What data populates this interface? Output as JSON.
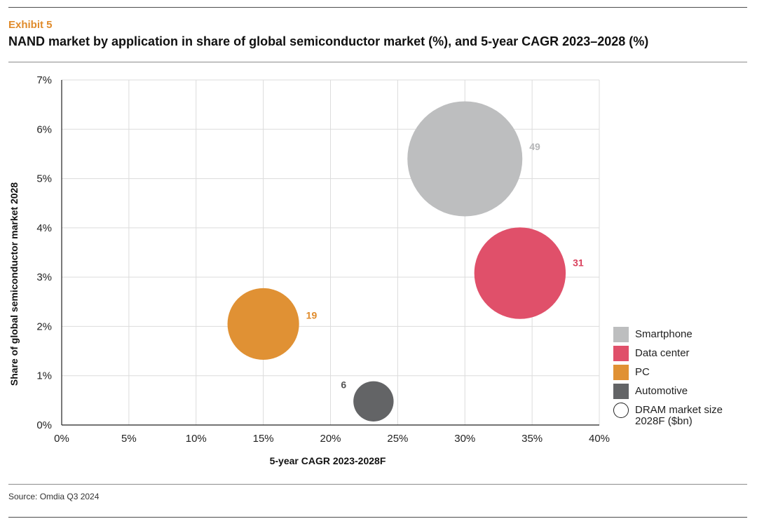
{
  "header": {
    "exhibit": "Exhibit  5",
    "title": "NAND market by application in share of global semiconductor market (%), and 5-year CAGR 2023–2028 (%)"
  },
  "footer": {
    "source": "Source: Omdia Q3 2024"
  },
  "legend": {
    "items": [
      {
        "label": "Smartphone",
        "color": "#bdbebf"
      },
      {
        "label": "Data center",
        "color": "#e0506a"
      },
      {
        "label": "PC",
        "color": "#e09134"
      },
      {
        "label": "Automotive",
        "color": "#636466"
      }
    ],
    "size_label": "DRAM market size 2028F ($bn)"
  },
  "chart_data": {
    "type": "scatter",
    "subtype": "bubble",
    "xlabel": "5-year CAGR 2023-2028F",
    "ylabel": "Share of global semiconductor market 2028",
    "xlim": [
      0,
      40
    ],
    "ylim": [
      0,
      7
    ],
    "x_ticks": [
      "0%",
      "5%",
      "10%",
      "15%",
      "20%",
      "25%",
      "30%",
      "35%",
      "40%"
    ],
    "y_ticks": [
      "0%",
      "1%",
      "2%",
      "3%",
      "4%",
      "5%",
      "6%",
      "7%"
    ],
    "grid": true,
    "legend_position": "right",
    "series": [
      {
        "name": "Smartphone",
        "x": 30.0,
        "y": 5.4,
        "size": 49,
        "label": "49",
        "color": "#bdbebf",
        "label_color": "#b5b6b8"
      },
      {
        "name": "Data center",
        "x": 34.1,
        "y": 3.08,
        "size": 31,
        "label": "31",
        "color": "#e0506a",
        "label_color": "#d9405c"
      },
      {
        "name": "PC",
        "x": 15.0,
        "y": 2.05,
        "size": 19,
        "label": "19",
        "color": "#e09134",
        "label_color": "#e08b2b"
      },
      {
        "name": "Automotive",
        "x": 23.2,
        "y": 0.48,
        "size": 6,
        "label": "6",
        "color": "#636466",
        "label_color": "#555555"
      }
    ]
  }
}
